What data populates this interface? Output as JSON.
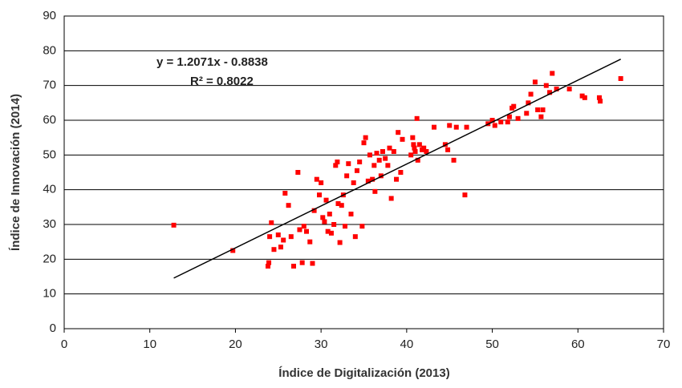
{
  "chart_data": {
    "type": "scatter",
    "x_label": "Índice de Digitalización (2013)",
    "y_label": "Índice de Innovación (2014)",
    "color": "#ff0000",
    "x": [
      12.8,
      19.7,
      23.8,
      23.9,
      24,
      24.2,
      24.5,
      25,
      25.3,
      25.6,
      25.8,
      26.2,
      26.5,
      26.8,
      27.3,
      27.5,
      27.8,
      28,
      28.3,
      28.7,
      29,
      29.2,
      29.5,
      29.8,
      30,
      30.2,
      30.4,
      30.6,
      30.8,
      31,
      31.2,
      31.5,
      31.7,
      31.9,
      32,
      32.2,
      32.4,
      32.6,
      32.8,
      33,
      33.2,
      33.5,
      33.8,
      34,
      34.2,
      34.5,
      34.8,
      35,
      35.2,
      35.5,
      35.7,
      36,
      36.2,
      36.3,
      36.5,
      36.8,
      37,
      37.2,
      37.5,
      37.8,
      38,
      38.2,
      38.5,
      38.8,
      39,
      39.3,
      39.5,
      40.5,
      40.7,
      40.8,
      40.9,
      41,
      41.2,
      41.3,
      41.5,
      41.8,
      42,
      42.3,
      43.2,
      44.5,
      44.8,
      45,
      45.5,
      45.8,
      46.8,
      47,
      49.5,
      50,
      50.3,
      51,
      51.8,
      52,
      52.3,
      52.5,
      53,
      54,
      54.2,
      54.5,
      55,
      55.3,
      55.7,
      55.9,
      56.3,
      56.7,
      57,
      57.5,
      59,
      60.5,
      60.8,
      62.5,
      62.6,
      65
    ],
    "values": [
      29.8,
      22.5,
      18,
      19,
      26.5,
      30.5,
      22.8,
      27,
      23.5,
      25.5,
      39,
      35.5,
      26.5,
      18,
      45,
      28.5,
      19,
      29.5,
      28,
      25,
      18.8,
      34,
      43,
      38.5,
      42,
      32,
      30.8,
      37,
      28,
      33,
      27.5,
      30,
      47,
      48,
      36,
      24.8,
      35.5,
      38.5,
      29.5,
      44,
      47.5,
      33,
      42,
      26.5,
      45.5,
      48,
      29.5,
      53.5,
      55,
      42.5,
      50,
      43,
      47,
      39.5,
      50.5,
      48.5,
      44,
      51,
      49,
      47,
      52,
      37.5,
      51,
      43,
      56.5,
      45,
      54.5,
      50,
      55,
      53,
      52,
      51,
      60.5,
      48.5,
      53,
      51.5,
      52,
      51,
      58,
      53,
      51.5,
      58.5,
      48.5,
      58,
      38.5,
      58,
      59,
      60,
      58.5,
      59.5,
      59.5,
      61,
      63.5,
      64,
      60.5,
      62,
      65,
      67.5,
      71,
      63,
      61,
      63,
      70,
      68,
      73.5,
      69,
      69,
      67,
      66.5,
      66.5,
      65.5,
      72
    ],
    "trendline": {
      "equation": "y = 1.2071x - 0.8838",
      "r2": "R² = 0.8022",
      "slope": 1.2071,
      "intercept": -0.8838,
      "x_range": [
        12.8,
        65
      ]
    },
    "xlim": [
      0,
      70
    ],
    "xticks": [
      0,
      10,
      20,
      30,
      40,
      50,
      60,
      70
    ],
    "ylim": [
      0,
      90
    ],
    "yticks": [
      0,
      10,
      20,
      30,
      40,
      50,
      60,
      70,
      80,
      90
    ],
    "grid": true
  }
}
